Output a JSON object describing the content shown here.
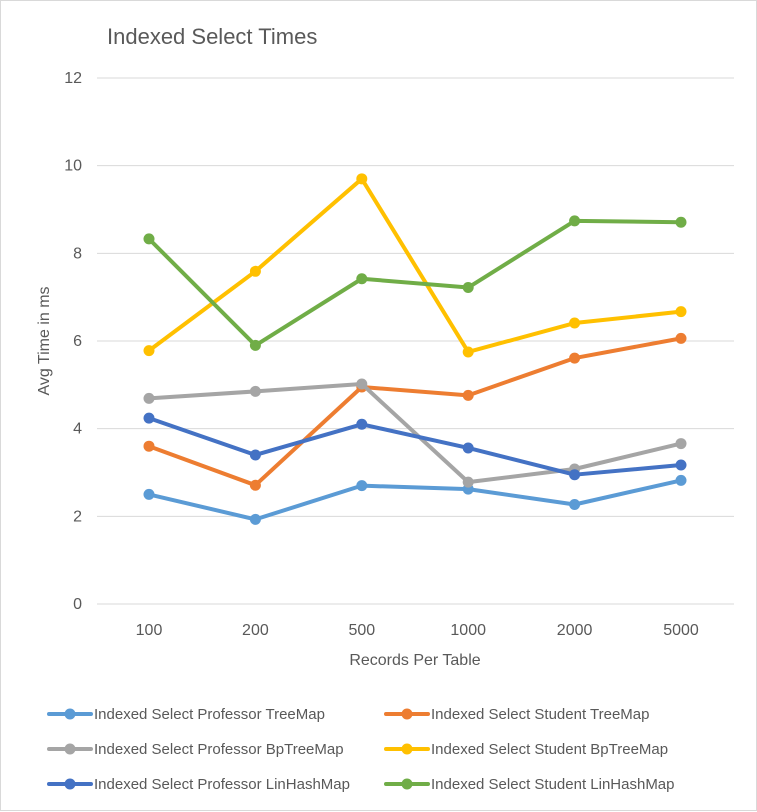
{
  "chart_data": {
    "type": "line",
    "title": "Indexed Select Times",
    "xlabel": "Records Per Table",
    "ylabel": "Avg Time in ms",
    "categories": [
      "100",
      "200",
      "500",
      "1000",
      "2000",
      "5000"
    ],
    "ylim": [
      0,
      12
    ],
    "yticks": [
      0,
      2,
      4,
      6,
      8,
      10,
      12
    ],
    "grid": true,
    "legend_position": "bottom",
    "series": [
      {
        "name": "Indexed Select Professor TreeMap",
        "color": "#5B9BD5",
        "values": [
          2.5,
          1.93,
          2.7,
          2.62,
          2.27,
          2.82
        ]
      },
      {
        "name": "Indexed Select Student TreeMap",
        "color": "#ED7D31",
        "values": [
          3.6,
          2.71,
          4.95,
          4.76,
          5.61,
          6.06
        ]
      },
      {
        "name": "Indexed Select Professor BpTreeMap",
        "color": "#A5A5A5",
        "values": [
          4.69,
          4.85,
          5.02,
          2.78,
          3.08,
          3.66
        ]
      },
      {
        "name": "Indexed Select Student BpTreeMap",
        "color": "#FFC000",
        "values": [
          5.78,
          7.59,
          9.7,
          5.75,
          6.41,
          6.67
        ]
      },
      {
        "name": "Indexed Select Professor LinHashMap",
        "color": "#4472C4",
        "values": [
          4.24,
          3.4,
          4.1,
          3.56,
          2.95,
          3.17
        ]
      },
      {
        "name": "Indexed Select Student LinHashMap",
        "color": "#70AD47",
        "values": [
          8.33,
          5.9,
          7.42,
          7.22,
          8.74,
          8.71
        ]
      }
    ]
  }
}
